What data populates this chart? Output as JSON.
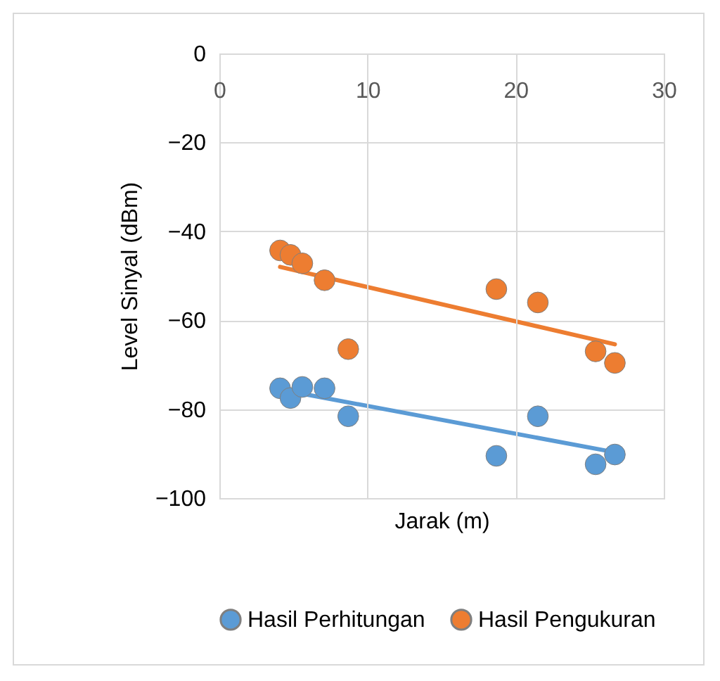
{
  "chart_data": {
    "type": "scatter",
    "xlabel": "Jarak (m)",
    "ylabel": "Level Sinyal (dBm)",
    "xlim": [
      0,
      30
    ],
    "xticks": [
      0,
      10,
      20,
      30
    ],
    "ylim": [
      -100,
      0
    ],
    "yticks": [
      -100,
      -80,
      -60,
      -40,
      -20,
      0
    ],
    "grid": true,
    "legend": "bottom",
    "series": [
      {
        "name": "Hasil Perhitungan",
        "color": "#5b9bd5",
        "marker": "circle",
        "x": [
          4.1,
          4.8,
          5.6,
          7.1,
          8.7,
          18.7,
          21.5,
          25.4,
          26.7
        ],
        "values": [
          -75.3,
          -77.5,
          -75,
          -75.3,
          -81.6,
          -90.5,
          -81.6,
          -92.4,
          -90.2
        ]
      },
      {
        "name": "Hasil Pengukuran",
        "color": "#ed7d31",
        "marker": "circle",
        "x": [
          4.1,
          4.8,
          5.6,
          7.1,
          8.7,
          18.7,
          21.5,
          25.4,
          26.7
        ],
        "values": [
          -44.3,
          -45.3,
          -47.2,
          -51,
          -66.5,
          -53,
          -56,
          -67,
          -69.6
        ]
      },
      {
        "type": "line",
        "color": "#5b9bd5",
        "marker": "none",
        "x": [
          4.1,
          26.7
        ],
        "values": [
          -75.6,
          -89.7
        ]
      },
      {
        "type": "line",
        "color": "#ed7d31",
        "marker": "none",
        "x": [
          4.1,
          26.7
        ],
        "values": [
          -48,
          -65.4
        ]
      }
    ]
  }
}
